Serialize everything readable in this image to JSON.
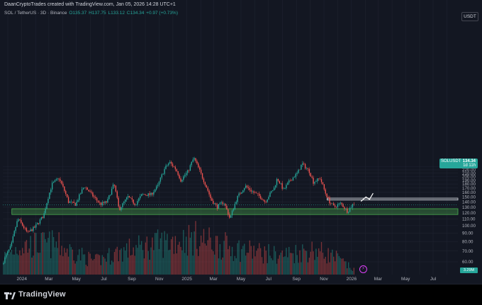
{
  "header": {
    "attribution": "DaanCryptoTrades created with TradingView.com, Jan 05, 2026 14:28 UTC+1"
  },
  "legend": {
    "symbol": "SOL / TetherUS · 3D · Binance",
    "open": "O135.37",
    "high": "H137.75",
    "low": "L133.12",
    "close": "C134.34",
    "change": "+0.97 (+0.73%)"
  },
  "currency_button": "USDT",
  "price_tag": {
    "symbol": "SOLUSDT",
    "price": "134.34",
    "countdown": "1d 11h"
  },
  "volume_tag": "3.29M",
  "brand": {
    "name": "TradingView"
  },
  "colors": {
    "up": "#26a69a",
    "down": "#ef5350",
    "support_zone": "#4caf50",
    "resistance_zone": "#d1d4dc",
    "background": "#000000"
  },
  "chart_data": {
    "type": "candlestick",
    "scale": "log",
    "ylim": [
      57,
      248
    ],
    "y_ticks": [
      230,
      220,
      210,
      200,
      190,
      180,
      170,
      160,
      150,
      140,
      130,
      120,
      110,
      100,
      90,
      80,
      70,
      60
    ],
    "x_ticks": [
      "2024",
      "Mar",
      "May",
      "Jul",
      "Sep",
      "Nov",
      "2025",
      "Mar",
      "May",
      "Jul",
      "Sep",
      "Nov",
      "2026",
      "Mar",
      "May",
      "Jul"
    ],
    "x_range": [
      "2023-11-20",
      "2026-08-25"
    ],
    "current_price": 134.34,
    "series": [
      {
        "kind": "close",
        "points": [
          [
            "2023-11-20",
            58
          ],
          [
            "2023-12-10",
            75
          ],
          [
            "2023-12-25",
            110
          ],
          [
            "2024-01-15",
            90
          ],
          [
            "2024-02-01",
            98
          ],
          [
            "2024-02-20",
            115
          ],
          [
            "2024-03-10",
            180
          ],
          [
            "2024-03-25",
            195
          ],
          [
            "2024-04-15",
            140
          ],
          [
            "2024-05-01",
            135
          ],
          [
            "2024-05-20",
            175
          ],
          [
            "2024-06-10",
            150
          ],
          [
            "2024-06-25",
            135
          ],
          [
            "2024-07-10",
            140
          ],
          [
            "2024-07-25",
            180
          ],
          [
            "2024-08-05",
            125
          ],
          [
            "2024-08-25",
            150
          ],
          [
            "2024-09-10",
            135
          ],
          [
            "2024-09-25",
            155
          ],
          [
            "2024-10-15",
            155
          ],
          [
            "2024-10-30",
            175
          ],
          [
            "2024-11-15",
            225
          ],
          [
            "2024-11-25",
            245
          ],
          [
            "2024-12-10",
            220
          ],
          [
            "2024-12-20",
            190
          ],
          [
            "2025-01-05",
            215
          ],
          [
            "2025-01-18",
            260
          ],
          [
            "2025-02-05",
            200
          ],
          [
            "2025-02-25",
            145
          ],
          [
            "2025-03-10",
            130
          ],
          [
            "2025-03-25",
            140
          ],
          [
            "2025-04-08",
            110
          ],
          [
            "2025-04-25",
            150
          ],
          [
            "2025-05-12",
            175
          ],
          [
            "2025-05-30",
            160
          ],
          [
            "2025-06-15",
            150
          ],
          [
            "2025-06-25",
            140
          ],
          [
            "2025-07-15",
            170
          ],
          [
            "2025-07-22",
            195
          ],
          [
            "2025-08-05",
            165
          ],
          [
            "2025-08-20",
            190
          ],
          [
            "2025-09-05",
            210
          ],
          [
            "2025-09-15",
            240
          ],
          [
            "2025-10-01",
            215
          ],
          [
            "2025-10-10",
            185
          ],
          [
            "2025-10-25",
            195
          ],
          [
            "2025-11-05",
            160
          ],
          [
            "2025-11-15",
            140
          ],
          [
            "2025-11-25",
            130
          ],
          [
            "2025-12-10",
            137
          ],
          [
            "2025-12-25",
            122
          ],
          [
            "2026-01-05",
            134.34
          ]
        ]
      },
      {
        "kind": "volume",
        "points": [
          [
            "2023-11-20",
            0.45
          ],
          [
            "2023-12-25",
            0.75
          ],
          [
            "2024-03-10",
            0.8
          ],
          [
            "2024-06-10",
            0.35
          ],
          [
            "2024-08-05",
            0.6
          ],
          [
            "2024-11-15",
            0.85
          ],
          [
            "2025-01-18",
            0.95
          ],
          [
            "2025-04-08",
            0.7
          ],
          [
            "2025-07-22",
            0.5
          ],
          [
            "2025-10-10",
            0.65
          ],
          [
            "2025-11-25",
            0.45
          ],
          [
            "2026-01-05",
            0.12
          ]
        ]
      }
    ],
    "zones": [
      {
        "kind": "support",
        "low": 117,
        "high": 127,
        "from": "2023-12-10",
        "to": "2026-08-25"
      },
      {
        "kind": "resistance",
        "low": 143.5,
        "high": 147.5,
        "from": "2025-11-08",
        "to": "2026-08-25"
      }
    ],
    "annotations": [
      {
        "kind": "projection-arrow",
        "points": [
          [
            "2026-01-22",
            141
          ],
          [
            "2026-02-02",
            150
          ],
          [
            "2026-02-10",
            145
          ],
          [
            "2026-02-18",
            158
          ]
        ]
      }
    ]
  }
}
